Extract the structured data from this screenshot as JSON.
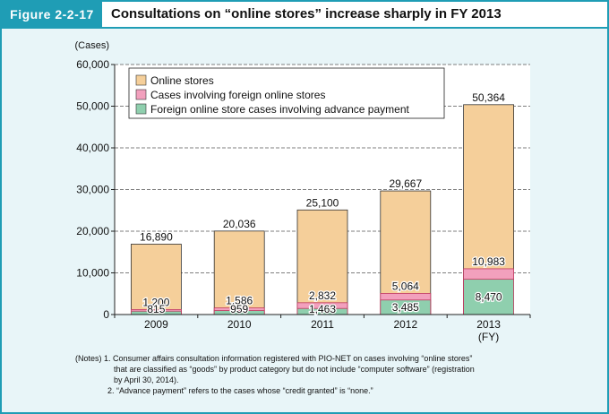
{
  "figure": {
    "label": "Figure 2-2-17",
    "title": "Consultations on “online stores” increase sharply in FY 2013"
  },
  "notes": [
    "(Notes) 1. Consumer affairs consultation information registered with PIO-NET on cases involving “online stores”",
    "that are classified as “goods” by product category but do not include “computer software” (registration",
    "by April 30, 2014).",
    "2. “Advance payment” refers to the cases whose “credit granted” is “none.”"
  ],
  "chart_data": {
    "type": "bar",
    "categories": [
      "2009",
      "2010",
      "2011",
      "2012",
      "2013"
    ],
    "x_unit_label": "(FY)",
    "y_unit_label": "(Cases)",
    "ylim": [
      0,
      60000
    ],
    "yticks": [
      0,
      10000,
      20000,
      30000,
      40000,
      50000,
      60000
    ],
    "ytick_labels": [
      "0",
      "10,000",
      "20,000",
      "30,000",
      "40,000",
      "50,000",
      "60,000"
    ],
    "grid": true,
    "legend_position": "top-left",
    "series": [
      {
        "name": "Online stores",
        "values": [
          16890,
          20036,
          25100,
          29667,
          50364
        ],
        "labels": [
          "16,890",
          "20,036",
          "25,100",
          "29,667",
          "50,364"
        ],
        "color": "#f5cf9a"
      },
      {
        "name": "Cases involving foreign online stores",
        "values": [
          1200,
          1586,
          2832,
          5064,
          10983
        ],
        "labels": [
          "1,200",
          "1,586",
          "2,832",
          "5,064",
          "10,983"
        ],
        "color": "#f2a0bd"
      },
      {
        "name": "Foreign online store cases involving advance payment",
        "values": [
          815,
          959,
          1463,
          3485,
          8470
        ],
        "labels": [
          "815",
          "959",
          "1,463",
          "3,485",
          "8,470"
        ],
        "color": "#8fcfae"
      }
    ]
  }
}
